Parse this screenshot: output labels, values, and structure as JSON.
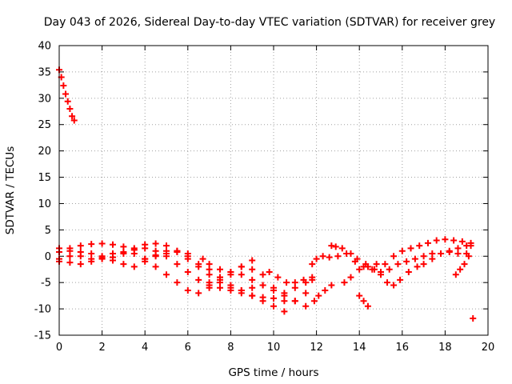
{
  "chart_data": {
    "type": "scatter",
    "title": "Day 043 of 2026, Sidereal Day-to-day VTEC variation (SDTVAR) for receiver grey",
    "xlabel": "GPS time / hours",
    "ylabel": "SDTVAR / TECUs",
    "xlim": [
      0,
      20
    ],
    "ylim": [
      -15,
      40
    ],
    "xticks": [
      0,
      2,
      4,
      6,
      8,
      10,
      12,
      14,
      16,
      18,
      20
    ],
    "yticks": [
      -15,
      -10,
      -5,
      0,
      5,
      10,
      15,
      20,
      25,
      30,
      35,
      40
    ],
    "grid": true,
    "marker": "+",
    "series": [
      {
        "name": "s1",
        "color": "#ff0000",
        "points": [
          [
            0.0,
            35.4
          ],
          [
            0.1,
            34.0
          ],
          [
            0.2,
            32.4
          ],
          [
            0.3,
            30.8
          ],
          [
            0.4,
            29.4
          ],
          [
            0.5,
            28.0
          ],
          [
            0.6,
            26.6
          ],
          [
            0.7,
            25.8
          ]
        ]
      },
      {
        "name": "s2",
        "color": "#ff0000",
        "points": [
          [
            0.0,
            -1.0
          ],
          [
            0.5,
            -1.2
          ],
          [
            1.0,
            -1.5
          ],
          [
            1.5,
            -1.0
          ],
          [
            2.0,
            -0.5
          ],
          [
            2.5,
            -0.8
          ],
          [
            3.0,
            -1.5
          ],
          [
            3.5,
            -2.0
          ],
          [
            4.0,
            -1.0
          ],
          [
            4.5,
            0.0
          ],
          [
            5.0,
            0.5
          ],
          [
            5.5,
            1.0
          ],
          [
            6.0,
            0.5
          ]
        ]
      },
      {
        "name": "s3",
        "color": "#ff0000",
        "points": [
          [
            0.0,
            0.8
          ],
          [
            0.5,
            1.5
          ],
          [
            1.0,
            2.0
          ],
          [
            1.5,
            2.3
          ],
          [
            2.0,
            2.4
          ],
          [
            2.5,
            2.2
          ],
          [
            3.0,
            1.8
          ],
          [
            3.5,
            1.5
          ],
          [
            4.0,
            2.2
          ],
          [
            4.5,
            2.4
          ],
          [
            5.0,
            2.0
          ],
          [
            5.5,
            1.0
          ],
          [
            6.0,
            0.0
          ],
          [
            6.5,
            -1.5
          ],
          [
            7.0,
            -2.5
          ],
          [
            7.5,
            -4.0
          ],
          [
            8.0,
            -5.5
          ],
          [
            8.5,
            -6.5
          ],
          [
            9.0,
            -7.5
          ],
          [
            9.5,
            -8.5
          ],
          [
            10.0,
            -9.5
          ],
          [
            10.5,
            -10.5
          ]
        ]
      },
      {
        "name": "s4",
        "color": "#ff0000",
        "points": [
          [
            0.0,
            -0.5
          ],
          [
            0.5,
            0.0
          ],
          [
            1.0,
            0.8
          ],
          [
            1.5,
            0.5
          ],
          [
            2.0,
            -0.3
          ],
          [
            2.5,
            -0.2
          ],
          [
            3.0,
            0.5
          ],
          [
            3.5,
            1.2
          ],
          [
            4.0,
            1.5
          ],
          [
            4.5,
            1.0
          ],
          [
            5.0,
            0.0
          ],
          [
            5.5,
            -1.5
          ],
          [
            6.0,
            -3.0
          ],
          [
            6.5,
            -4.5
          ],
          [
            7.0,
            -5.5
          ],
          [
            7.5,
            -6.0
          ],
          [
            8.0,
            -6.5
          ],
          [
            8.5,
            -7.0
          ],
          [
            9.0,
            -7.5
          ],
          [
            9.5,
            -7.8
          ],
          [
            10.0,
            -8.0
          ],
          [
            10.5,
            -8.5
          ],
          [
            11.0,
            -8.5
          ],
          [
            11.5,
            -7.0
          ]
        ]
      },
      {
        "name": "s5",
        "color": "#ff0000",
        "points": [
          [
            0.0,
            1.5
          ],
          [
            0.5,
            1.0
          ],
          [
            1.0,
            0.0
          ],
          [
            1.5,
            -0.5
          ],
          [
            2.0,
            0.0
          ],
          [
            2.5,
            0.5
          ],
          [
            3.0,
            0.8
          ],
          [
            3.5,
            0.5
          ],
          [
            4.0,
            -0.5
          ],
          [
            4.5,
            -2.0
          ],
          [
            5.0,
            -3.5
          ],
          [
            5.5,
            -5.0
          ],
          [
            6.0,
            -6.5
          ],
          [
            6.5,
            -7.0
          ],
          [
            7.0,
            -6.0
          ],
          [
            7.5,
            -4.5
          ],
          [
            8.0,
            -3.0
          ],
          [
            8.5,
            -2.0
          ],
          [
            9.0,
            -2.5
          ],
          [
            9.5,
            -3.5
          ]
        ]
      },
      {
        "name": "s6",
        "color": "#ff0000",
        "points": [
          [
            4.0,
            -0.5
          ],
          [
            4.5,
            0.2
          ],
          [
            5.0,
            1.0
          ],
          [
            5.5,
            0.8
          ],
          [
            6.0,
            -0.5
          ],
          [
            6.5,
            -2.0
          ],
          [
            7.0,
            -3.5
          ],
          [
            7.5,
            -5.0
          ],
          [
            8.0,
            -6.0
          ],
          [
            8.5,
            -6.5
          ],
          [
            9.0,
            -6.0
          ],
          [
            9.5,
            -5.5
          ],
          [
            10.0,
            -6.0
          ],
          [
            10.5,
            -7.0
          ],
          [
            11.0,
            -6.0
          ],
          [
            11.5,
            -5.0
          ],
          [
            11.8,
            -4.5
          ]
        ]
      },
      {
        "name": "s7",
        "color": "#ff0000",
        "points": [
          [
            6.7,
            -0.5
          ],
          [
            7.0,
            -1.5
          ],
          [
            7.5,
            -2.5
          ],
          [
            8.0,
            -3.5
          ],
          [
            8.5,
            -2.0
          ],
          [
            9.0,
            -0.8
          ]
        ]
      },
      {
        "name": "s8",
        "color": "#ff0000",
        "points": [
          [
            7.0,
            -5.0
          ],
          [
            7.5,
            -4.0
          ],
          [
            8.0,
            -3.0
          ],
          [
            8.5,
            -3.5
          ],
          [
            9.0,
            -4.5
          ],
          [
            9.5,
            -5.5
          ],
          [
            10.0,
            -6.5
          ],
          [
            10.5,
            -7.5
          ],
          [
            11.0,
            -8.5
          ],
          [
            11.5,
            -9.5
          ]
        ]
      },
      {
        "name": "s9",
        "color": "#ff0000",
        "points": [
          [
            9.8,
            -3.0
          ],
          [
            10.2,
            -4.0
          ],
          [
            10.6,
            -5.0
          ],
          [
            11.0,
            -5.0
          ],
          [
            11.4,
            -4.5
          ],
          [
            11.8,
            -4.0
          ]
        ]
      },
      {
        "name": "s10",
        "color": "#ff0000",
        "points": [
          [
            11.8,
            -1.5
          ],
          [
            12.0,
            -0.5
          ],
          [
            12.3,
            0.0
          ],
          [
            12.6,
            -0.2
          ],
          [
            13.0,
            0.0
          ],
          [
            13.4,
            0.5
          ],
          [
            13.8,
            -1.0
          ],
          [
            14.2,
            -2.0
          ],
          [
            14.6,
            -2.5
          ],
          [
            15.0,
            -3.0
          ],
          [
            15.4,
            -2.5
          ],
          [
            15.8,
            -1.5
          ],
          [
            16.2,
            -1.0
          ],
          [
            16.6,
            -0.5
          ],
          [
            17.0,
            0.0
          ],
          [
            17.4,
            0.5
          ],
          [
            17.8,
            0.5
          ],
          [
            18.2,
            1.0
          ],
          [
            18.6,
            1.5
          ],
          [
            19.0,
            2.0
          ],
          [
            19.2,
            2.0
          ]
        ]
      },
      {
        "name": "s11",
        "color": "#ff0000",
        "points": [
          [
            11.9,
            -8.5
          ],
          [
            12.1,
            -7.5
          ],
          [
            12.4,
            -6.5
          ],
          [
            12.7,
            -5.5
          ]
        ]
      },
      {
        "name": "s12",
        "color": "#ff0000",
        "points": [
          [
            12.7,
            2.0
          ],
          [
            12.9,
            1.8
          ],
          [
            13.2,
            1.5
          ]
        ]
      },
      {
        "name": "s13",
        "color": "#ff0000",
        "points": [
          [
            13.6,
            0.5
          ],
          [
            13.9,
            -0.5
          ],
          [
            14.3,
            -1.5
          ],
          [
            14.7,
            -2.5
          ],
          [
            15.0,
            -3.5
          ],
          [
            15.3,
            -5.0
          ],
          [
            15.6,
            -5.5
          ],
          [
            15.9,
            -4.5
          ],
          [
            16.3,
            -3.0
          ],
          [
            16.7,
            -2.0
          ],
          [
            17.0,
            -1.5
          ],
          [
            17.4,
            -0.5
          ],
          [
            17.8,
            0.5
          ],
          [
            18.2,
            0.8
          ],
          [
            18.6,
            0.5
          ],
          [
            19.0,
            0.5
          ]
        ]
      },
      {
        "name": "s14",
        "color": "#ff0000",
        "points": [
          [
            13.3,
            -5.0
          ],
          [
            13.6,
            -4.0
          ],
          [
            14.0,
            -2.5
          ],
          [
            14.4,
            -2.0
          ],
          [
            14.8,
            -1.5
          ],
          [
            15.2,
            -1.5
          ],
          [
            15.6,
            0.0
          ],
          [
            16.0,
            1.0
          ],
          [
            16.4,
            1.5
          ],
          [
            16.8,
            2.0
          ],
          [
            17.2,
            2.5
          ],
          [
            17.6,
            3.0
          ],
          [
            18.0,
            3.2
          ],
          [
            18.4,
            3.0
          ],
          [
            18.8,
            2.8
          ],
          [
            19.2,
            2.5
          ]
        ]
      },
      {
        "name": "s15",
        "color": "#ff0000",
        "points": [
          [
            14.0,
            -7.5
          ],
          [
            14.2,
            -8.5
          ],
          [
            14.4,
            -9.5
          ]
        ]
      },
      {
        "name": "s16",
        "color": "#ff0000",
        "points": [
          [
            18.5,
            -3.5
          ],
          [
            18.7,
            -2.5
          ],
          [
            18.9,
            -1.5
          ],
          [
            19.1,
            0.0
          ]
        ]
      },
      {
        "name": "s17",
        "color": "#ff0000",
        "points": [
          [
            19.3,
            -11.8
          ]
        ]
      }
    ]
  }
}
